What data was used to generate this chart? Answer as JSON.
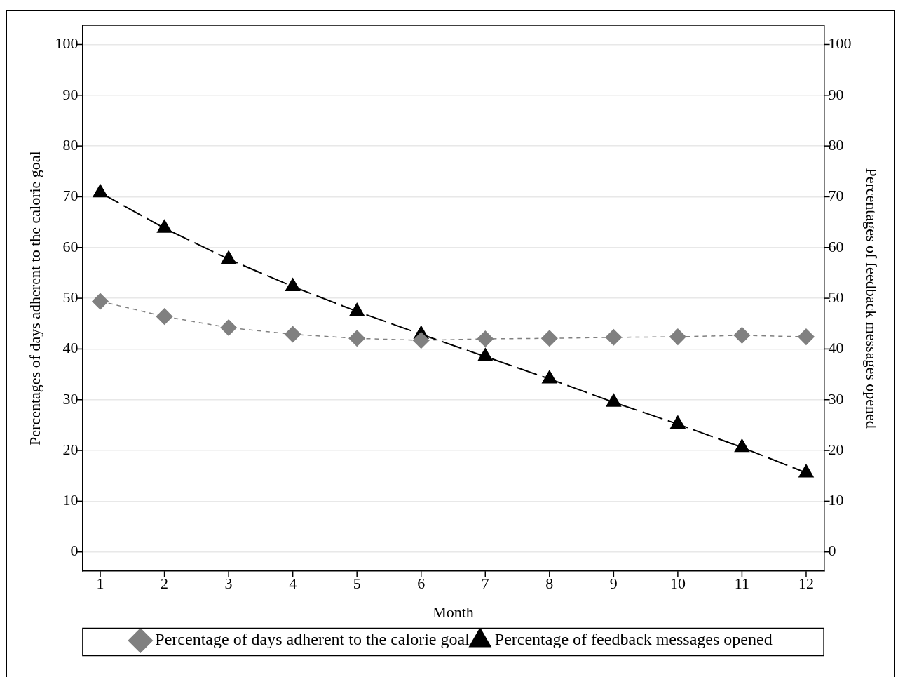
{
  "chart_data": {
    "type": "line",
    "xlabel": "Month",
    "ylabel": "Percentages of days adherent to the calorie goal",
    "y2label": "Percentages of feedback messages opened",
    "x": [
      1,
      2,
      3,
      4,
      5,
      6,
      7,
      8,
      9,
      10,
      11,
      12
    ],
    "xlim": [
      0.72,
      12.28
    ],
    "xticks": [
      1,
      2,
      3,
      4,
      5,
      6,
      7,
      8,
      9,
      10,
      11,
      12
    ],
    "ylim": [
      -3.8,
      103.8
    ],
    "yticks": [
      0,
      10,
      20,
      30,
      40,
      50,
      60,
      70,
      80,
      90,
      100
    ],
    "y2lim": [
      -3.8,
      103.8
    ],
    "y2ticks": [
      0,
      10,
      20,
      30,
      40,
      50,
      60,
      70,
      80,
      90,
      100
    ],
    "grid": "y",
    "legend": "bottom",
    "series": [
      {
        "name": "Percentage of days adherent to the calorie goal",
        "color": "#808080",
        "marker": "diamond",
        "line_style": "dashed",
        "values": [
          49.4,
          46.4,
          44.2,
          42.9,
          42.1,
          41.7,
          42.0,
          42.1,
          42.3,
          42.4,
          42.7,
          42.4
        ]
      },
      {
        "name": "Percentage of feedback messages opened",
        "color": "#000000",
        "marker": "triangle",
        "line_style": "dashed",
        "axis": "y2",
        "values": [
          70.8,
          63.8,
          57.7,
          52.3,
          47.4,
          42.9,
          38.5,
          34.1,
          29.5,
          25.2,
          20.6,
          15.6
        ]
      }
    ]
  }
}
